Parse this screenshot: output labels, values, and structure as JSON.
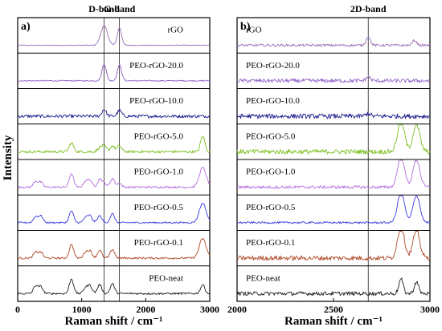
{
  "figure": {
    "ylabel": "Intensity",
    "colors": {
      "rGO": "#9a6fb8",
      "PEO-rGO-20.0": "#8e5fc8",
      "PEO-rGO-10.0": "#1a1a8c",
      "PEO-rGO-5.0": "#7cc020",
      "PEO-rGO-1.0": "#b46ee0",
      "PEO-rGO-0.5": "#3a3ae0",
      "PEO-rGO-0.1": "#b04a2a",
      "PEO-neat": "#202020"
    }
  },
  "chart_data": [
    {
      "type": "line",
      "panel_label": "a)",
      "xlabel": "Raman shift / cm⁻¹",
      "ylabel": "Intensity",
      "xlim": [
        0,
        3000
      ],
      "xticks": [
        0,
        1000,
        2000,
        3000
      ],
      "band_labels": [
        {
          "text": "D-band",
          "x": 1350
        },
        {
          "text": "G-band",
          "x": 1590
        }
      ],
      "series": [
        {
          "name": "rGO",
          "label": "rGO",
          "peaks": [
            [
              1350,
              1.0
            ],
            [
              1590,
              0.9
            ]
          ],
          "noise": 0.02
        },
        {
          "name": "PEO-rGO-20.0",
          "label": "PEO-rGO-20.0",
          "peaks": [
            [
              1350,
              0.85
            ],
            [
              1590,
              0.8
            ]
          ],
          "noise": 0.03
        },
        {
          "name": "PEO-rGO-10.0",
          "label": "PEO-rGO-10.0",
          "peaks": [
            [
              1350,
              0.35
            ],
            [
              1590,
              0.3
            ]
          ],
          "noise": 0.08
        },
        {
          "name": "PEO-rGO-5.0",
          "label": "PEO-rGO-5.0",
          "peaks": [
            [
              840,
              0.45
            ],
            [
              1280,
              0.2
            ],
            [
              1350,
              0.3
            ],
            [
              1480,
              0.3
            ],
            [
              1590,
              0.3
            ],
            [
              2890,
              0.8
            ]
          ],
          "noise": 0.07
        },
        {
          "name": "PEO-rGO-1.0",
          "label": "PEO-rGO-1.0",
          "peaks": [
            [
              280,
              0.3
            ],
            [
              360,
              0.25
            ],
            [
              840,
              0.7
            ],
            [
              1060,
              0.3
            ],
            [
              1130,
              0.35
            ],
            [
              1280,
              0.4
            ],
            [
              1350,
              0.2
            ],
            [
              1480,
              0.45
            ],
            [
              1590,
              0.2
            ],
            [
              2890,
              1.0
            ]
          ],
          "noise": 0.05
        },
        {
          "name": "PEO-rGO-0.5",
          "label": "PEO-rGO-0.5",
          "peaks": [
            [
              280,
              0.3
            ],
            [
              360,
              0.35
            ],
            [
              840,
              0.6
            ],
            [
              1060,
              0.25
            ],
            [
              1130,
              0.35
            ],
            [
              1280,
              0.35
            ],
            [
              1480,
              0.45
            ],
            [
              2890,
              1.0
            ]
          ],
          "noise": 0.04
        },
        {
          "name": "PEO-rGO-0.1",
          "label": "PEO-rGO-0.1",
          "peaks": [
            [
              280,
              0.3
            ],
            [
              360,
              0.3
            ],
            [
              840,
              0.7
            ],
            [
              1060,
              0.3
            ],
            [
              1130,
              0.35
            ],
            [
              1280,
              0.4
            ],
            [
              1480,
              0.45
            ],
            [
              2890,
              1.0
            ]
          ],
          "noise": 0.05
        },
        {
          "name": "PEO-neat",
          "label": "PEO-neat",
          "peaks": [
            [
              280,
              0.4
            ],
            [
              360,
              0.35
            ],
            [
              840,
              0.75
            ],
            [
              1060,
              0.3
            ],
            [
              1130,
              0.4
            ],
            [
              1280,
              0.45
            ],
            [
              1480,
              0.5
            ],
            [
              2890,
              0.45
            ]
          ],
          "noise": 0.05
        }
      ]
    },
    {
      "type": "line",
      "panel_label": "b)",
      "xlabel": "Raman shift / cm⁻¹",
      "ylabel": "",
      "xlim": [
        2000,
        3000
      ],
      "xticks": [
        2000,
        2500,
        3000
      ],
      "band_labels": [
        {
          "text": "2D-band",
          "x": 2680
        }
      ],
      "series": [
        {
          "name": "rGO",
          "label": "rGO",
          "peaks": [
            [
              2680,
              0.45
            ],
            [
              2920,
              0.25
            ]
          ],
          "noise": 0.06
        },
        {
          "name": "PEO-rGO-20.0",
          "label": "PEO-rGO-20.0",
          "peaks": [
            [
              2680,
              0.2
            ]
          ],
          "noise": 0.1
        },
        {
          "name": "PEO-rGO-10.0",
          "label": "PEO-rGO-10.0",
          "peaks": [
            [
              2680,
              0.15
            ]
          ],
          "noise": 0.12
        },
        {
          "name": "PEO-rGO-5.0",
          "label": "PEO-rGO-5.0",
          "peaks": [
            [
              2850,
              1.6
            ],
            [
              2930,
              1.4
            ]
          ],
          "noise": 0.12
        },
        {
          "name": "PEO-rGO-1.0",
          "label": "PEO-rGO-1.0",
          "peaks": [
            [
              2850,
              1.6
            ],
            [
              2930,
              1.4
            ]
          ],
          "noise": 0.08
        },
        {
          "name": "PEO-rGO-0.5",
          "label": "PEO-rGO-0.5",
          "peaks": [
            [
              2850,
              1.6
            ],
            [
              2930,
              1.4
            ]
          ],
          "noise": 0.05
        },
        {
          "name": "PEO-rGO-0.1",
          "label": "PEO-rGO-0.1",
          "peaks": [
            [
              2850,
              1.6
            ],
            [
              2930,
              1.4
            ]
          ],
          "noise": 0.12
        },
        {
          "name": "PEO-neat",
          "label": "PEO-neat",
          "peaks": [
            [
              2850,
              0.75
            ],
            [
              2930,
              0.6
            ]
          ],
          "noise": 0.1
        }
      ]
    }
  ]
}
